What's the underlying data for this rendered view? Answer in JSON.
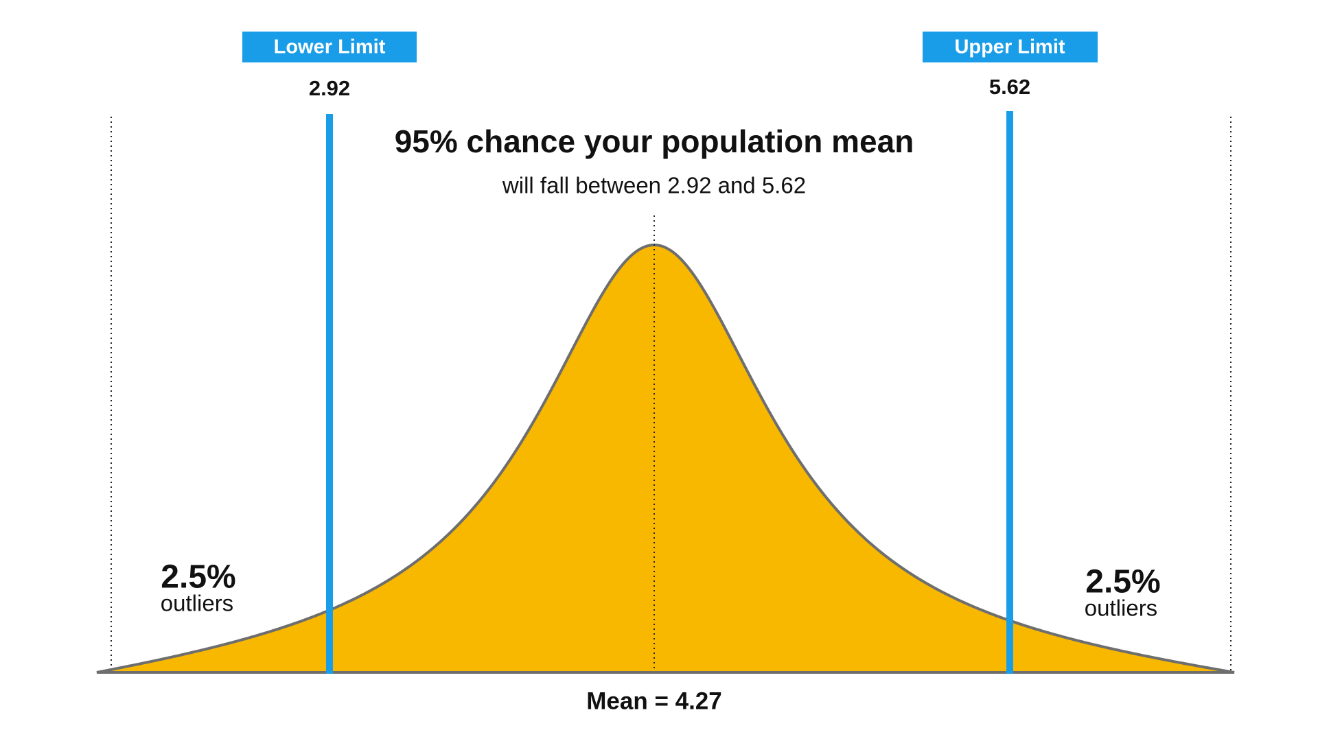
{
  "lower_limit": {
    "label": "Lower Limit",
    "value": "2.92"
  },
  "upper_limit": {
    "label": "Upper Limit",
    "value": "5.62"
  },
  "title": "95% chance your population mean",
  "subtitle": "will fall between 2.92 and 5.62",
  "left_tail": {
    "percent": "2.5%",
    "label": "outliers"
  },
  "right_tail": {
    "percent": "2.5%",
    "label": "outliers"
  },
  "mean_label": "Mean = 4.27"
}
